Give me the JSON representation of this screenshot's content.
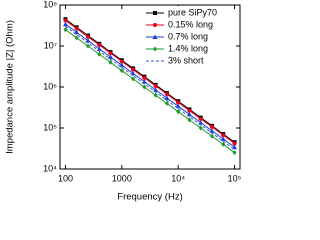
{
  "chart_data": {
    "type": "line",
    "x_label": "Frequency (Hz)",
    "y_label": "Impedance amplitude |Z| (Ohm)",
    "x": [
      100,
      158,
      251,
      398,
      631,
      1000,
      1585,
      2512,
      3981,
      6310,
      10000,
      15849,
      25119,
      39811,
      63096,
      100000
    ],
    "series": [
      {
        "name": "pure SiPy70",
        "color": "#000000",
        "marker": "square",
        "dashed": false,
        "values": [
          45000000,
          28500000,
          17900000,
          11300000,
          7100000,
          4500000,
          2840000,
          1790000,
          1130000,
          710000,
          450000,
          284000,
          179000,
          113000,
          71000,
          45000
        ]
      },
      {
        "name": "0.15% long",
        "color": "#e8001c",
        "marker": "circle",
        "dashed": false,
        "values": [
          42000000,
          26600000,
          16700000,
          10600000,
          6700000,
          4200000,
          2650000,
          1670000,
          1060000,
          670000,
          420000,
          265000,
          167000,
          106000,
          67000,
          42000
        ]
      },
      {
        "name": "0.7% long",
        "color": "#1f3fd0",
        "marker": "triangle",
        "dashed": false,
        "values": [
          34000000,
          21500000,
          13500000,
          8500000,
          5400000,
          3400000,
          2150000,
          1350000,
          850000,
          540000,
          340000,
          215000,
          135000,
          85000,
          54000,
          34000
        ]
      },
      {
        "name": "1.4% long",
        "color": "#1a9a2a",
        "marker": "diamond",
        "dashed": false,
        "values": [
          25000000,
          15800000,
          10000000,
          6300000,
          4000000,
          2500000,
          1580000,
          1000000,
          630000,
          400000,
          250000,
          158000,
          100000,
          63000,
          40000,
          25000
        ]
      },
      {
        "name": "3% short",
        "color": "#3b55e0",
        "marker": "none",
        "dashed": true,
        "values": [
          30000000,
          19000000,
          12000000,
          7500000,
          4750000,
          3000000,
          1900000,
          1200000,
          750000,
          475000,
          300000,
          190000,
          120000,
          75000,
          47500,
          30000
        ]
      }
    ],
    "xlim": [
      80,
      125000
    ],
    "ylim": [
      10000,
      100000000
    ],
    "log_x": true,
    "log_y": true,
    "xticks": [
      100,
      1000,
      {
        "value": 10000,
        "label": "10⁴"
      },
      {
        "value": 100000,
        "label": "10⁵"
      }
    ],
    "yticks": [
      {
        "value": 10000,
        "label": "10⁴"
      },
      {
        "value": 100000,
        "label": "10⁵"
      },
      {
        "value": 1000000,
        "label": "10⁶"
      },
      {
        "value": 10000000,
        "label": "10⁷"
      },
      {
        "value": 100000000,
        "label": "10⁸"
      }
    ],
    "legend": "upper right"
  }
}
